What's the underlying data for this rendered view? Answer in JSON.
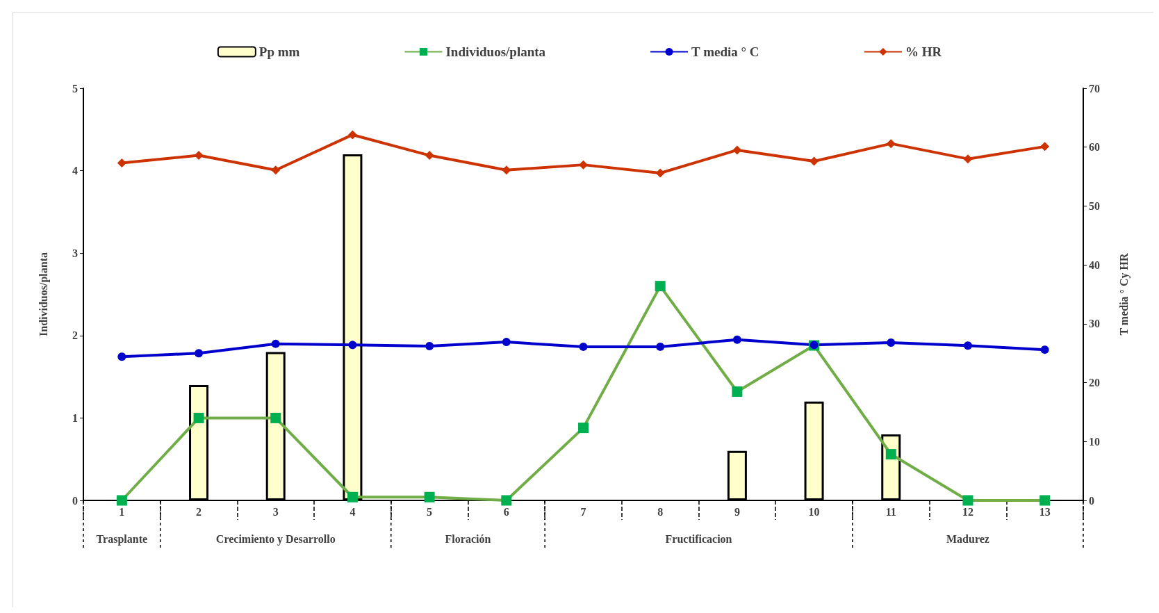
{
  "chart_data": {
    "type": "bar",
    "ylabel": "Individuos/planta",
    "y2label": "T media ° Cy HR",
    "categories": [
      "1",
      "2",
      "3",
      "4",
      "5",
      "6",
      "7",
      "8",
      "9",
      "10",
      "11",
      "12",
      "13"
    ],
    "series": [
      {
        "name": "Pp mm",
        "color": "#ffffcc",
        "values": [
          null,
          1.4,
          1.8,
          4.2,
          null,
          null,
          null,
          null,
          0.6,
          1.2,
          0.8,
          null,
          null
        ]
      },
      {
        "name": "Individuos/planta",
        "type": "line",
        "color": "#70ad47",
        "marker": "square",
        "values": [
          0,
          1,
          1,
          0.04,
          0.04,
          0,
          0.88,
          2.6,
          1.32,
          1.88,
          0.56,
          0,
          0
        ]
      },
      {
        "name": "T media ° C",
        "type": "line",
        "axis": "y2",
        "color": "#0000cc",
        "marker": "circle",
        "values": [
          24.4,
          25.0,
          26.6,
          26.4,
          26.2,
          26.9,
          26.1,
          26.1,
          27.3,
          26.4,
          26.8,
          26.3,
          25.6
        ]
      },
      {
        "name": "% HR",
        "type": "line",
        "axis": "y2",
        "color": "#cc3300",
        "marker": "diamond",
        "values": [
          57.3,
          58.6,
          56.1,
          62.1,
          58.6,
          56.1,
          57.0,
          55.6,
          59.5,
          57.6,
          60.6,
          58.0,
          60.1
        ]
      }
    ],
    "ylim": [
      0,
      5
    ],
    "yticks": [
      0,
      1,
      2,
      3,
      4,
      5
    ],
    "y2lim": [
      0,
      70
    ],
    "y2ticks": [
      0,
      10,
      20,
      30,
      40,
      50,
      60,
      70
    ],
    "annotations": [
      "Trasplante",
      "Crecimiento y Desarrollo",
      "Floración",
      "Fructificacion",
      "Madurez"
    ],
    "grid": false,
    "legend": "top"
  }
}
